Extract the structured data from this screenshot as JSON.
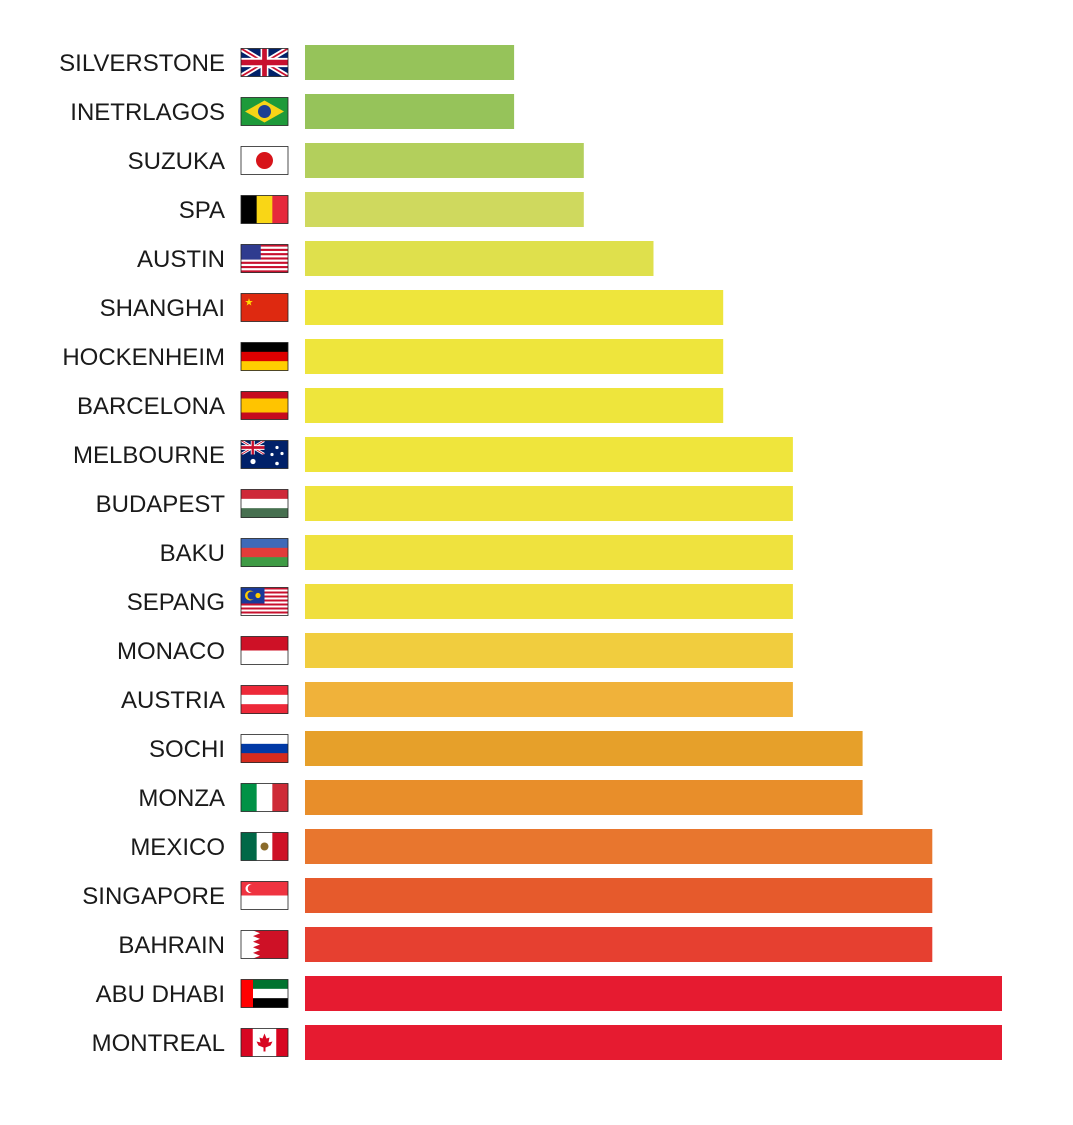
{
  "chart_data": {
    "type": "bar",
    "orientation": "horizontal",
    "title": "",
    "xlabel": "",
    "ylabel": "",
    "xlim": [
      0,
      10
    ],
    "grid": false,
    "legend": "none",
    "categories": [
      "SILVERSTONE",
      "INETRLAGOS",
      "SUZUKA",
      "SPA",
      "AUSTIN",
      "SHANGHAI",
      "HOCKENHEIM",
      "BARCELONA",
      "MELBOURNE",
      "BUDAPEST",
      "BAKU",
      "SEPANG",
      "MONACO",
      "AUSTRIA",
      "SOCHI",
      "MONZA",
      "MEXICO",
      "SINGAPORE",
      "BAHRAIN",
      "ABU DHABI",
      "MONTREAL"
    ],
    "values": [
      3,
      3,
      4,
      4,
      5,
      6,
      6,
      6,
      7,
      7,
      7,
      7,
      7,
      7,
      8,
      8,
      9,
      9,
      9,
      10,
      10
    ],
    "bar_colors": [
      "#96c35a",
      "#96c35a",
      "#b3cf5c",
      "#cfd95e",
      "#dfe04c",
      "#eee53c",
      "#eee53c",
      "#eee53c",
      "#efe53c",
      "#efe33e",
      "#efe23e",
      "#f0df3e",
      "#f1cd3e",
      "#f0b23a",
      "#e6a02a",
      "#e88e2a",
      "#e8762e",
      "#e65a2c",
      "#e64030",
      "#e61b30",
      "#e61b30"
    ],
    "flags": [
      "gb",
      "br",
      "jp",
      "be",
      "us",
      "cn",
      "de",
      "es",
      "au",
      "hu",
      "az",
      "my",
      "mc",
      "at",
      "ru",
      "it",
      "mx",
      "sg",
      "bh",
      "ae",
      "ca"
    ]
  }
}
